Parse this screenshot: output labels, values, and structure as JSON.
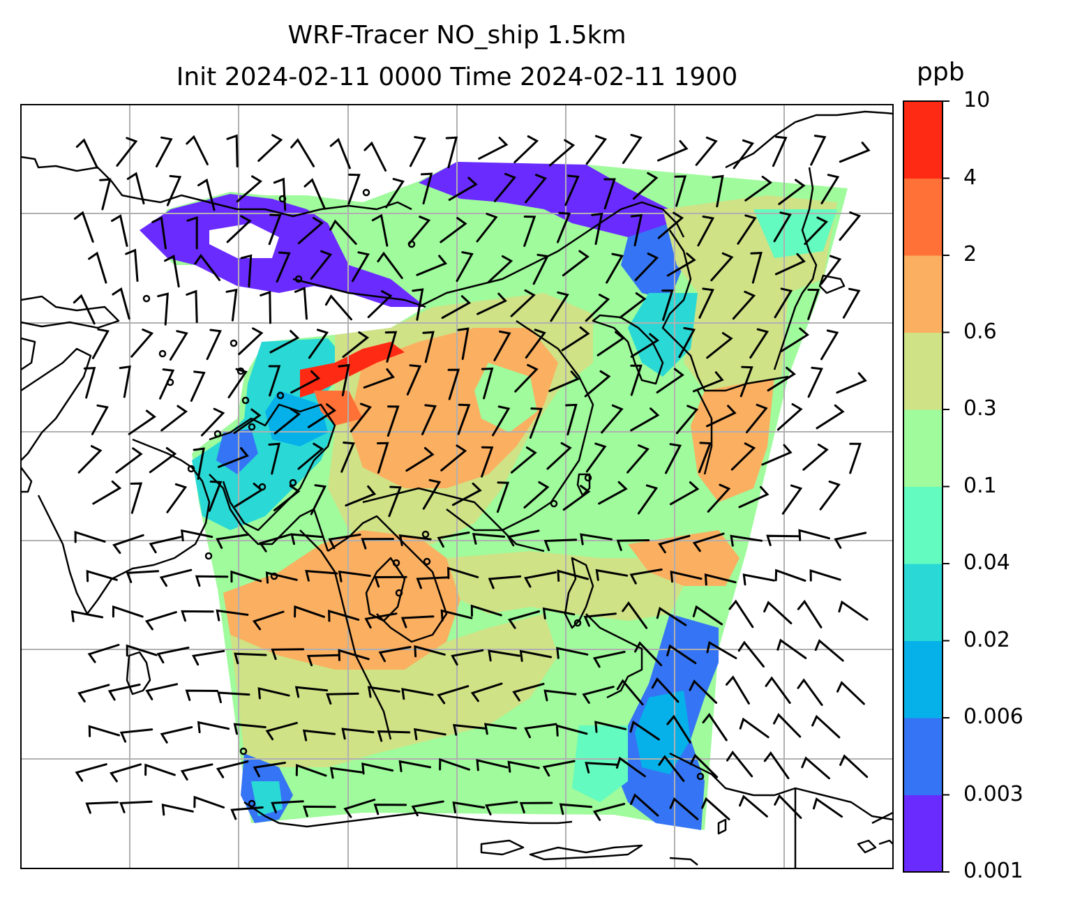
{
  "title": {
    "line1": "WRF-Tracer NO_ship 1.5km",
    "line2": "Init 2024-02-11 0000 Time 2024-02-11 1900"
  },
  "colorbar": {
    "units": "ppb",
    "levels": [
      "0.001",
      "0.003",
      "0.006",
      "0.02",
      "0.04",
      "0.1",
      "0.3",
      "0.6",
      "2",
      "4",
      "10"
    ],
    "colors": [
      "#6a2bff",
      "#3575f5",
      "#06b1e9",
      "#2ad9d5",
      "#63fbbf",
      "#9ffb9c",
      "#cfe286",
      "#fbaf60",
      "#ff7137",
      "#ff2a14"
    ]
  },
  "map": {
    "grid": true,
    "coastline_color": "#000000",
    "wind_barbs": true
  }
}
